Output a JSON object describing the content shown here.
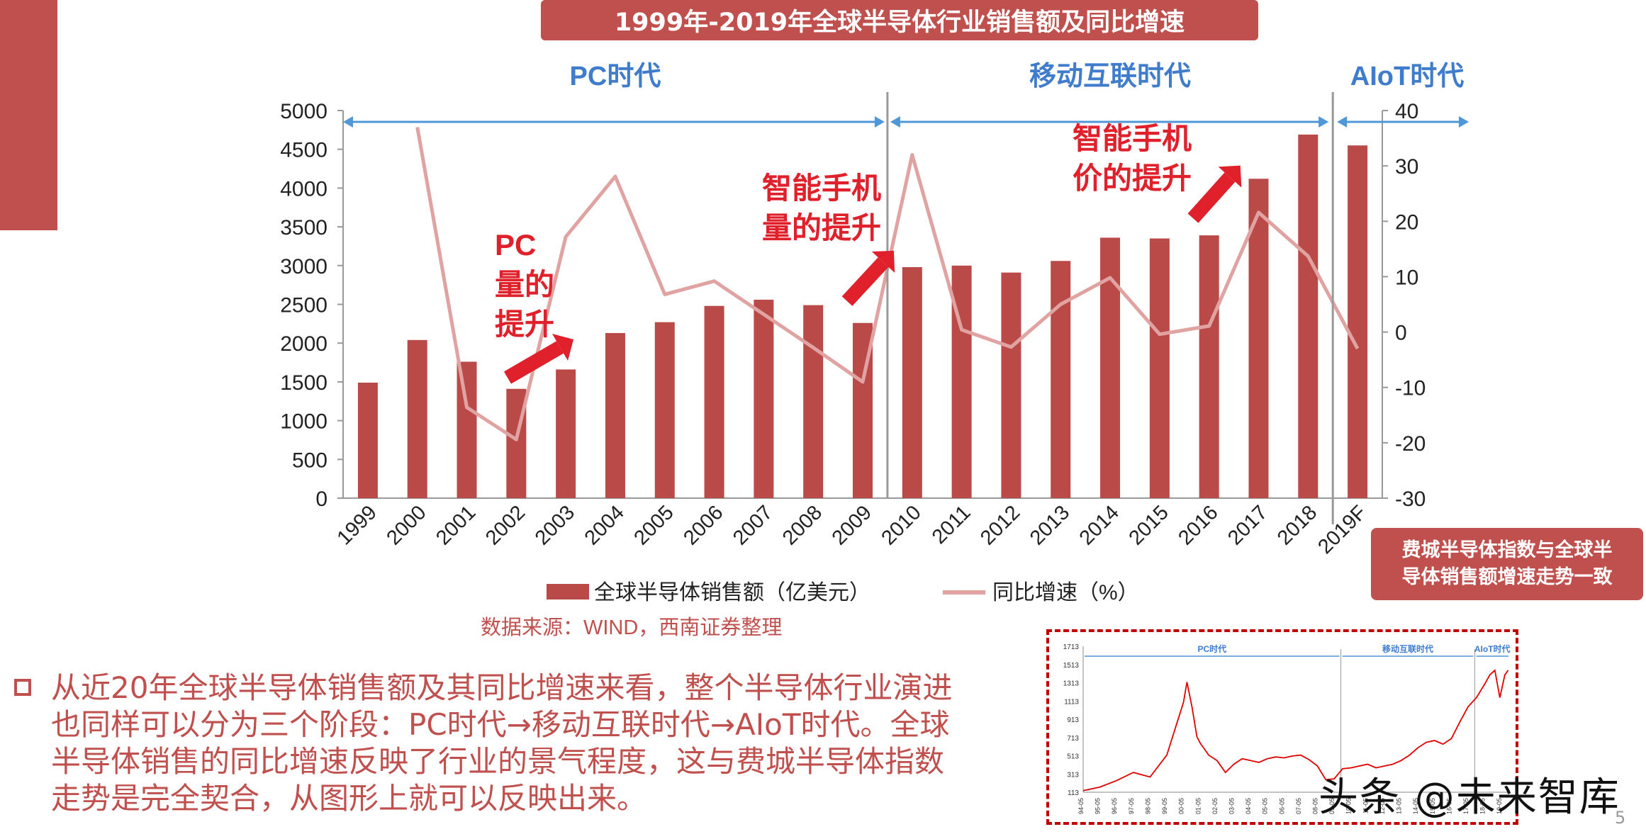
{
  "title": "1999年-2019年全球半导体行业销售额及同比增速",
  "eras": [
    {
      "label": "PC时代",
      "from": "1999",
      "to": "2009"
    },
    {
      "label": "移动互联时代",
      "from": "2009",
      "to": "2019F"
    },
    {
      "label": "AIoT时代",
      "from": "2019F",
      "to": "2019F"
    }
  ],
  "annotations": [
    {
      "text": "PC量的提升",
      "lines": [
        "PC",
        "量的",
        "提升"
      ],
      "near": "2002"
    },
    {
      "text": "智能手机量的提升",
      "lines": [
        "智能手机",
        "量的提升"
      ],
      "near": "2009"
    },
    {
      "text": "智能手机价的提升",
      "lines": [
        "智能手机",
        "价的提升"
      ],
      "near": "2016"
    }
  ],
  "chart_data": {
    "type": "bar",
    "categories": [
      "1999",
      "2000",
      "2001",
      "2002",
      "2003",
      "2004",
      "2005",
      "2006",
      "2007",
      "2008",
      "2009",
      "2010",
      "2011",
      "2012",
      "2013",
      "2014",
      "2015",
      "2016",
      "2017",
      "2018",
      "2019F"
    ],
    "series": [
      {
        "name": "全球半导体销售额（亿美元）",
        "type": "bar",
        "axis": "left",
        "values": [
          1490,
          2040,
          1760,
          1410,
          1660,
          2130,
          2270,
          2480,
          2560,
          2490,
          2260,
          2980,
          3000,
          2910,
          3060,
          3360,
          3350,
          3390,
          4120,
          4690,
          4550
        ]
      },
      {
        "name": "同比增速（%）",
        "type": "line",
        "axis": "right",
        "values": [
          null,
          37,
          -13.6,
          -19.4,
          17.2,
          28.1,
          6.8,
          9.2,
          3.2,
          -2.8,
          -9,
          32,
          0.4,
          -2.7,
          5,
          9.8,
          -0.4,
          1.1,
          21.6,
          13.7,
          -3
        ]
      }
    ],
    "ylim_left": [
      0,
      5000
    ],
    "yticks_left": [
      0,
      500,
      1000,
      1500,
      2000,
      2500,
      3000,
      3500,
      4000,
      4500,
      5000
    ],
    "ylim_right": [
      -30,
      40
    ],
    "yticks_right": [
      -30,
      -20,
      -10,
      0,
      10,
      20,
      30,
      40
    ],
    "legend_position": "bottom",
    "colors": {
      "bar": "#b94a48",
      "line": "#e0a3a1"
    },
    "source": "数据来源：WIND，西南证券整理"
  },
  "caption": {
    "lines": [
      "费城半导体指数与全球半",
      "导体销售额增速走势一致"
    ]
  },
  "paragraph": "从近20年全球半导体销售额及其同比增速来看，整个半导体行业演进也同样可以分为三个阶段：PC时代→移动互联时代→AIoT时代。全球半导体销售的同比增速反映了行业的景气程度，这与费城半导体指数走势是完全契合，从图形上就可以反映出来。",
  "inset_chart": {
    "type": "line",
    "yticks": [
      113,
      313,
      513,
      713,
      913,
      1113,
      1313,
      1513,
      1713
    ],
    "ylim": [
      113,
      1713
    ],
    "xticks": [
      "94-05",
      "95-05",
      "96-05",
      "97-05",
      "98-05",
      "99-05",
      "00-05",
      "01-05",
      "02-05",
      "03-05",
      "04-05",
      "05-05",
      "06-05",
      "07-05",
      "08-05",
      "09-05",
      "10-05",
      "11-05",
      "12-05",
      "13-05",
      "14-05",
      "15-05",
      "16-05",
      "17-05",
      "18-05",
      "19-05"
    ],
    "eras": [
      "PC时代",
      "移动互联时代",
      "AIoT时代"
    ],
    "x": [
      1994,
      1995,
      1996,
      1997,
      1998,
      1999,
      2000,
      2000.2,
      2000.5,
      2000.8,
      2001,
      2001.5,
      2002,
      2002.5,
      2003,
      2003.5,
      2004,
      2004.5,
      2005,
      2005.5,
      2006,
      2006.5,
      2007,
      2007.5,
      2008,
      2008.5,
      2009,
      2009.5,
      2010,
      2010.5,
      2011,
      2011.5,
      2012,
      2012.5,
      2013,
      2013.5,
      2014,
      2014.5,
      2015,
      2015.5,
      2016,
      2016.5,
      2017,
      2017.5,
      2018,
      2018.3,
      2018.6,
      2018.9,
      2019.2,
      2019.4
    ],
    "values": [
      130,
      170,
      240,
      330,
      280,
      520,
      1100,
      1320,
      1050,
      720,
      650,
      520,
      460,
      330,
      420,
      480,
      460,
      440,
      480,
      500,
      490,
      510,
      520,
      470,
      400,
      250,
      260,
      370,
      380,
      400,
      420,
      380,
      400,
      420,
      460,
      520,
      600,
      660,
      680,
      640,
      700,
      880,
      1050,
      1150,
      1300,
      1400,
      1450,
      1150,
      1400,
      1450
    ],
    "color": "#e00000"
  },
  "watermark": "头条 @未来智库",
  "page_number": "5"
}
